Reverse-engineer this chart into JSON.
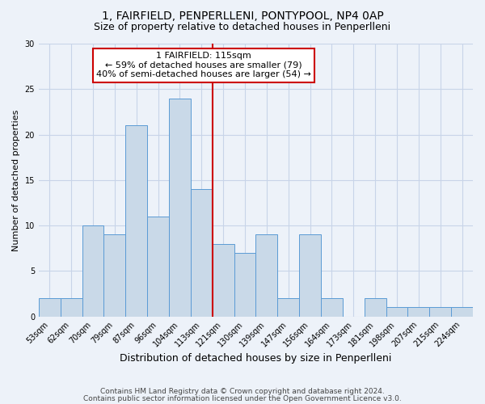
{
  "title": "1, FAIRFIELD, PENPERLLENI, PONTYPOOL, NP4 0AP",
  "subtitle": "Size of property relative to detached houses in Penperlleni",
  "xlabel": "Distribution of detached houses by size in Penperlleni",
  "ylabel": "Number of detached properties",
  "bar_labels": [
    "53sqm",
    "62sqm",
    "70sqm",
    "79sqm",
    "87sqm",
    "96sqm",
    "104sqm",
    "113sqm",
    "121sqm",
    "130sqm",
    "139sqm",
    "147sqm",
    "156sqm",
    "164sqm",
    "173sqm",
    "181sqm",
    "198sqm",
    "207sqm",
    "215sqm",
    "224sqm"
  ],
  "bar_heights": [
    2,
    2,
    10,
    9,
    21,
    11,
    24,
    14,
    8,
    7,
    9,
    2,
    9,
    2,
    0,
    2,
    1,
    1,
    1,
    1
  ],
  "bar_color": "#c9d9e8",
  "bar_edge_color": "#5b9bd5",
  "bar_edge_width": 0.7,
  "marker_bar_index": 7,
  "marker_line_color": "#cc0000",
  "annotation_line1": "1 FAIRFIELD: 115sqm",
  "annotation_line2": "← 59% of detached houses are smaller (79)",
  "annotation_line3": "40% of semi-detached houses are larger (54) →",
  "annotation_box_color": "white",
  "annotation_box_edge_color": "#cc0000",
  "ylim": [
    0,
    30
  ],
  "yticks": [
    0,
    5,
    10,
    15,
    20,
    25,
    30
  ],
  "grid_color": "#c8d4e8",
  "title_fontsize": 10,
  "subtitle_fontsize": 9,
  "xlabel_fontsize": 9,
  "ylabel_fontsize": 8,
  "tick_fontsize": 7,
  "annotation_fontsize": 8,
  "footer_line1": "Contains HM Land Registry data © Crown copyright and database right 2024.",
  "footer_line2": "Contains public sector information licensed under the Open Government Licence v3.0.",
  "background_color": "#edf2f9"
}
